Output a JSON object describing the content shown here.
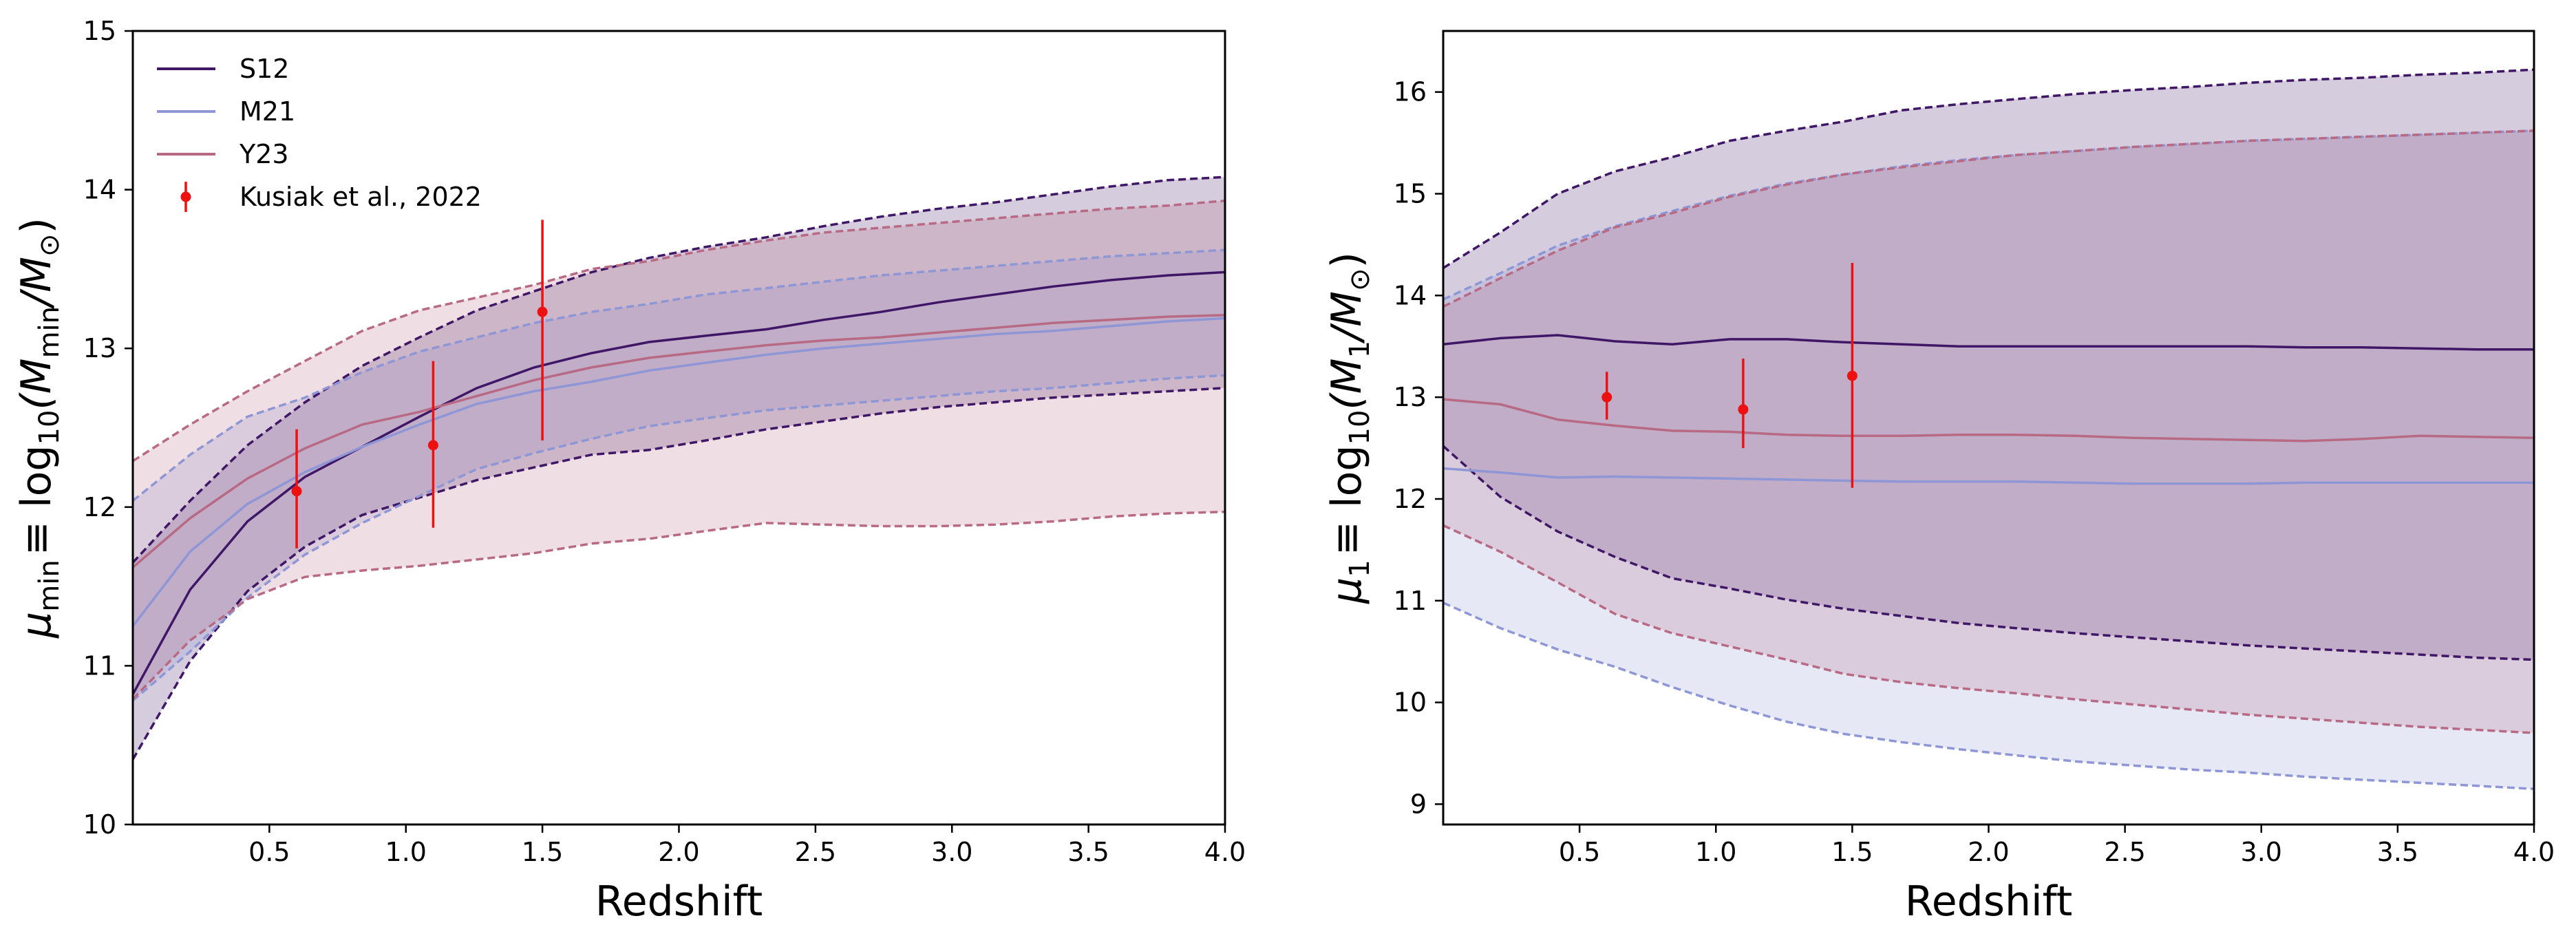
{
  "chart_data": [
    {
      "type": "line",
      "xlabel": "Redshift",
      "ylabel_symbol": "μ",
      "ylabel_sub": "min",
      "ylabel_rest": "≡ log",
      "ylabel_log_base": "10",
      "ylabel_paren": "(M",
      "ylabel_paren_sub": "min",
      "ylabel_slash": "/M",
      "ylabel_sun": "⊙",
      "ylabel_close": ")",
      "xlim": [
        0.0,
        4.0
      ],
      "ylim": [
        10,
        15
      ],
      "xticks": [
        0.5,
        1.0,
        1.5,
        2.0,
        2.5,
        3.0,
        3.5,
        4.0
      ],
      "yticks": [
        10,
        11,
        12,
        13,
        14,
        15
      ],
      "x": [
        0.0,
        0.21,
        0.42,
        0.63,
        0.84,
        1.05,
        1.26,
        1.47,
        1.68,
        1.89,
        2.1,
        2.32,
        2.53,
        2.74,
        2.95,
        3.16,
        3.37,
        3.58,
        3.79,
        4.0
      ],
      "legend_position": "top-left",
      "series": [
        {
          "name": "S12",
          "color": "#3f1766",
          "median": [
            10.82,
            11.48,
            11.91,
            12.19,
            12.38,
            12.57,
            12.75,
            12.88,
            12.97,
            13.04,
            13.08,
            13.12,
            13.18,
            13.23,
            13.29,
            13.34,
            13.39,
            13.43,
            13.46,
            13.48
          ],
          "lower": [
            10.41,
            11.03,
            11.47,
            11.75,
            11.95,
            12.06,
            12.17,
            12.25,
            12.33,
            12.36,
            12.42,
            12.49,
            12.54,
            12.59,
            12.63,
            12.66,
            12.69,
            12.71,
            12.73,
            12.75
          ],
          "upper": [
            11.65,
            12.04,
            12.39,
            12.66,
            12.89,
            13.07,
            13.24,
            13.36,
            13.48,
            13.57,
            13.64,
            13.7,
            13.77,
            13.83,
            13.88,
            13.92,
            13.97,
            14.02,
            14.06,
            14.08
          ]
        },
        {
          "name": "M21",
          "color": "#8e96d6",
          "median": [
            11.25,
            11.72,
            12.02,
            12.22,
            12.38,
            12.52,
            12.65,
            12.73,
            12.79,
            12.86,
            12.91,
            12.96,
            13.0,
            13.03,
            13.06,
            13.09,
            13.11,
            13.14,
            13.17,
            13.19
          ],
          "lower": [
            10.78,
            11.09,
            11.43,
            11.7,
            11.9,
            12.07,
            12.24,
            12.34,
            12.43,
            12.51,
            12.56,
            12.61,
            12.64,
            12.67,
            12.7,
            12.73,
            12.75,
            12.78,
            12.81,
            12.83
          ],
          "upper": [
            12.04,
            12.33,
            12.57,
            12.69,
            12.85,
            12.98,
            13.07,
            13.16,
            13.23,
            13.28,
            13.34,
            13.38,
            13.42,
            13.46,
            13.49,
            13.52,
            13.55,
            13.58,
            13.6,
            13.62
          ]
        },
        {
          "name": "Y23",
          "color": "#b86a84",
          "median": [
            11.62,
            11.93,
            12.18,
            12.37,
            12.52,
            12.6,
            12.7,
            12.8,
            12.88,
            12.94,
            12.98,
            13.02,
            13.05,
            13.07,
            13.1,
            13.13,
            13.16,
            13.18,
            13.2,
            13.21
          ],
          "lower": [
            10.79,
            11.16,
            11.42,
            11.56,
            11.6,
            11.63,
            11.67,
            11.71,
            11.77,
            11.8,
            11.85,
            11.9,
            11.89,
            11.88,
            11.88,
            11.89,
            11.91,
            11.94,
            11.96,
            11.97
          ],
          "upper": [
            12.29,
            12.52,
            12.73,
            12.92,
            13.11,
            13.24,
            13.32,
            13.4,
            13.5,
            13.55,
            13.62,
            13.68,
            13.73,
            13.76,
            13.79,
            13.82,
            13.85,
            13.88,
            13.9,
            13.93
          ]
        }
      ],
      "points": {
        "name": "Kusiak et al., 2022",
        "color": "#ee1111",
        "x": [
          0.6,
          1.1,
          1.5
        ],
        "y": [
          12.1,
          12.39,
          13.23
        ],
        "yerr_low": [
          12.1,
          12.39,
          13.23
        ],
        "ylow": [
          11.74,
          11.87,
          12.42
        ],
        "yhigh": [
          12.49,
          12.92,
          13.81
        ]
      }
    },
    {
      "type": "line",
      "xlabel": "Redshift",
      "ylabel_symbol": "μ",
      "ylabel_sub": "1",
      "ylabel_rest": "≡ log",
      "ylabel_log_base": "10",
      "ylabel_paren": "(M",
      "ylabel_paren_sub": "1",
      "ylabel_slash": "/M",
      "ylabel_sun": "⊙",
      "ylabel_close": ")",
      "xlim": [
        0.0,
        4.0
      ],
      "ylim": [
        8.8,
        16.6
      ],
      "xticks": [
        0.5,
        1.0,
        1.5,
        2.0,
        2.5,
        3.0,
        3.5,
        4.0
      ],
      "yticks": [
        9,
        10,
        11,
        12,
        13,
        14,
        15,
        16
      ],
      "x": [
        0.0,
        0.21,
        0.42,
        0.63,
        0.84,
        1.05,
        1.26,
        1.47,
        1.68,
        1.89,
        2.1,
        2.32,
        2.53,
        2.74,
        2.95,
        3.16,
        3.37,
        3.58,
        3.79,
        4.0
      ],
      "legend_position": "none",
      "series": [
        {
          "name": "S12",
          "color": "#3f1766",
          "median": [
            13.52,
            13.58,
            13.61,
            13.55,
            13.52,
            13.57,
            13.57,
            13.54,
            13.52,
            13.5,
            13.5,
            13.5,
            13.5,
            13.5,
            13.5,
            13.49,
            13.49,
            13.48,
            13.47,
            13.47
          ],
          "lower": [
            12.52,
            12.02,
            11.68,
            11.43,
            11.22,
            11.12,
            11.01,
            10.92,
            10.85,
            10.78,
            10.73,
            10.68,
            10.64,
            10.6,
            10.56,
            10.53,
            10.5,
            10.47,
            10.44,
            10.42
          ],
          "upper": [
            14.27,
            14.62,
            15.0,
            15.22,
            15.36,
            15.52,
            15.62,
            15.71,
            15.82,
            15.88,
            15.93,
            15.98,
            16.02,
            16.05,
            16.09,
            16.12,
            16.14,
            16.17,
            16.19,
            16.22
          ]
        },
        {
          "name": "M21",
          "color": "#8e96d6",
          "median": [
            12.3,
            12.26,
            12.21,
            12.22,
            12.21,
            12.2,
            12.19,
            12.18,
            12.17,
            12.17,
            12.17,
            12.16,
            12.15,
            12.15,
            12.15,
            12.16,
            12.16,
            12.16,
            12.16,
            12.16
          ],
          "lower": [
            10.98,
            10.73,
            10.52,
            10.35,
            10.15,
            9.97,
            9.81,
            9.69,
            9.61,
            9.54,
            9.48,
            9.42,
            9.38,
            9.34,
            9.31,
            9.27,
            9.24,
            9.21,
            9.18,
            9.15
          ],
          "upper": [
            13.96,
            14.22,
            14.49,
            14.68,
            14.83,
            14.98,
            15.1,
            15.19,
            15.27,
            15.33,
            15.38,
            15.42,
            15.46,
            15.49,
            15.52,
            15.54,
            15.56,
            15.58,
            15.6,
            15.62
          ]
        },
        {
          "name": "Y23",
          "color": "#b86a84",
          "median": [
            12.98,
            12.93,
            12.78,
            12.72,
            12.67,
            12.66,
            12.63,
            12.62,
            12.62,
            12.63,
            12.63,
            12.62,
            12.6,
            12.59,
            12.58,
            12.57,
            12.59,
            12.62,
            12.61,
            12.6
          ],
          "lower": [
            11.74,
            11.48,
            11.18,
            10.87,
            10.68,
            10.55,
            10.42,
            10.28,
            10.2,
            10.14,
            10.09,
            10.03,
            9.98,
            9.93,
            9.88,
            9.84,
            9.8,
            9.76,
            9.73,
            9.7
          ],
          "upper": [
            13.89,
            14.17,
            14.44,
            14.67,
            14.81,
            14.97,
            15.09,
            15.19,
            15.26,
            15.32,
            15.38,
            15.42,
            15.46,
            15.49,
            15.52,
            15.54,
            15.56,
            15.58,
            15.6,
            15.62
          ]
        }
      ],
      "points": {
        "name": "Kusiak et al., 2022",
        "color": "#ee1111",
        "x": [
          0.6,
          1.1,
          1.5
        ],
        "y": [
          13.0,
          12.88,
          13.21
        ],
        "ylow": [
          12.78,
          12.5,
          12.11
        ],
        "yhigh": [
          13.25,
          13.38,
          14.32
        ]
      }
    }
  ]
}
